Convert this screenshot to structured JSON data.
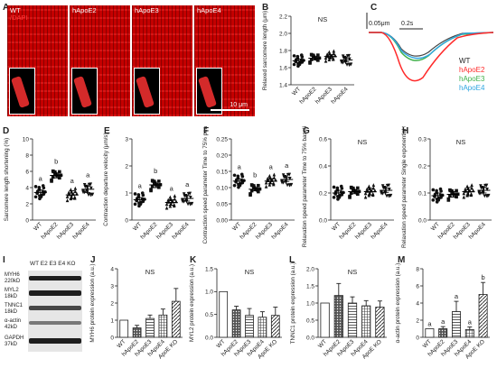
{
  "panels": {
    "A": "A",
    "B": "B",
    "C": "C",
    "D": "D",
    "E": "E",
    "F": "F",
    "G": "G",
    "H": "H",
    "I": "I",
    "J": "J",
    "K": "K",
    "L": "L",
    "M": "M"
  },
  "panel_a": {
    "images": [
      {
        "label": "WT",
        "sublabel": "/DAPI"
      },
      {
        "label": "hApoE2"
      },
      {
        "label": "hApoE3"
      },
      {
        "label": "hApoE4"
      }
    ],
    "scale": "10 μm"
  },
  "panel_c": {
    "scale_y": "0.05μm",
    "scale_x": "0.2s",
    "legend": [
      {
        "name": "WT",
        "color": "#222222"
      },
      {
        "name": "hApoE2",
        "color": "#ff2a2a"
      },
      {
        "name": "hApoE3",
        "color": "#3fb04a"
      },
      {
        "name": "hApoE4",
        "color": "#2fa6e0"
      }
    ]
  },
  "groups4": [
    "WT",
    "hApoE2",
    "hApoE3",
    "hApoE4"
  ],
  "groups5": [
    "WT",
    "hApoE2",
    "hApoE3",
    "hApoE4",
    "ApoE KO"
  ],
  "chart_data": [
    {
      "panel": "B",
      "type": "scatter",
      "ylabel": "Relaxed sarcomere length (μm)",
      "ylim": [
        1.4,
        2.2
      ],
      "yticks": [
        "1.4",
        "1.6",
        "1.8",
        "2.0",
        "2.2"
      ],
      "categories": [
        "WT",
        "hApoE2",
        "hApoE3",
        "hApoE4"
      ],
      "means": [
        1.68,
        1.71,
        1.73,
        1.69
      ],
      "sem": [
        0.02,
        0.02,
        0.02,
        0.02
      ],
      "stat": "NS",
      "letters": []
    },
    {
      "panel": "D",
      "type": "scatter",
      "ylabel": "Sarcomere length shortening (%)",
      "ylim": [
        0,
        10
      ],
      "yticks": [
        "0",
        "2",
        "4",
        "6",
        "8",
        "10"
      ],
      "categories": [
        "WT",
        "hApoE2",
        "hApoE3",
        "hApoE4"
      ],
      "means": [
        3.4,
        5.5,
        3.1,
        3.8
      ],
      "sem": [
        0.3,
        0.3,
        0.5,
        0.4
      ],
      "stat": "",
      "letters": [
        "a",
        "b",
        "a",
        "a"
      ]
    },
    {
      "panel": "E",
      "type": "scatter",
      "ylabel": "Contraction departure velocity (μm/s)",
      "ylim": [
        0,
        3
      ],
      "yticks": [
        "0",
        "1",
        "2",
        "3"
      ],
      "categories": [
        "WT",
        "hApoE2",
        "hApoE3",
        "hApoE4"
      ],
      "means": [
        0.75,
        1.3,
        0.65,
        0.8
      ],
      "sem": [
        0.08,
        0.1,
        0.1,
        0.1
      ],
      "stat": "",
      "letters": [
        "a",
        "b",
        "a",
        "a"
      ]
    },
    {
      "panel": "F",
      "type": "scatter",
      "ylabel": "Contraction speed parameter Time to 75% peak (s)",
      "ylim": [
        0,
        0.25
      ],
      "yticks": [
        "0.00",
        "0.05",
        "0.10",
        "0.15",
        "0.20",
        "0.25"
      ],
      "categories": [
        "WT",
        "hApoE2",
        "hApoE3",
        "hApoE4"
      ],
      "means": [
        0.12,
        0.095,
        0.12,
        0.125
      ],
      "sem": [
        0.007,
        0.005,
        0.008,
        0.006
      ],
      "stat": "",
      "letters": [
        "a",
        "b",
        "a",
        "a"
      ]
    },
    {
      "panel": "G",
      "type": "scatter",
      "ylabel": "Relaxation speed parameter Time to 75% baseline (s)",
      "ylim": [
        0,
        0.6
      ],
      "yticks": [
        "0.0",
        "0.2",
        "0.4",
        "0.6"
      ],
      "categories": [
        "WT",
        "hApoE2",
        "hApoE3",
        "hApoE4"
      ],
      "means": [
        0.2,
        0.21,
        0.21,
        0.22
      ],
      "sem": [
        0.02,
        0.015,
        0.025,
        0.015
      ],
      "stat": "NS",
      "letters": []
    },
    {
      "panel": "H",
      "type": "scatter",
      "ylabel": "Relaxation speed parameter Single exponential tau (s)",
      "ylim": [
        0,
        0.3
      ],
      "yticks": [
        "0.0",
        "0.1",
        "0.2",
        "0.3"
      ],
      "categories": [
        "WT",
        "hApoE2",
        "hApoE3",
        "hApoE4"
      ],
      "means": [
        0.09,
        0.095,
        0.105,
        0.11
      ],
      "sem": [
        0.01,
        0.01,
        0.015,
        0.01
      ],
      "stat": "NS",
      "letters": []
    },
    {
      "panel": "J",
      "type": "bar",
      "ylabel": "MYH6 protein expression (a.u.)",
      "ylim": [
        0,
        4
      ],
      "yticks": [
        "0",
        "1",
        "2",
        "3",
        "4"
      ],
      "categories": [
        "WT",
        "hApoE2",
        "hApoE3",
        "hApoE4",
        "ApoE KO"
      ],
      "values": [
        1.0,
        0.55,
        1.1,
        1.3,
        2.1
      ],
      "sem": [
        0,
        0.15,
        0.2,
        0.35,
        0.75
      ],
      "stat": "NS",
      "letters": []
    },
    {
      "panel": "K",
      "type": "bar",
      "ylabel": "MYL2 protein expression (a.u.)",
      "ylim": [
        0,
        1.5
      ],
      "yticks": [
        "0.0",
        "0.5",
        "1.0",
        "1.5"
      ],
      "categories": [
        "WT",
        "hApoE2",
        "hApoE3",
        "hApoE4",
        "ApoE KO"
      ],
      "values": [
        1.0,
        0.6,
        0.48,
        0.44,
        0.48
      ],
      "sem": [
        0,
        0.08,
        0.15,
        0.12,
        0.18
      ],
      "stat": "NS",
      "letters": []
    },
    {
      "panel": "L",
      "type": "bar",
      "ylabel": "TNNC1 protein expression (a.u.)",
      "ylim": [
        0,
        2
      ],
      "yticks": [
        "0.0",
        "0.5",
        "1.0",
        "1.5",
        "2.0"
      ],
      "categories": [
        "WT",
        "hApoE2",
        "hApoE3",
        "hApoE4",
        "ApoE KO"
      ],
      "values": [
        1.0,
        1.22,
        1.0,
        0.92,
        0.88
      ],
      "sem": [
        0,
        0.35,
        0.18,
        0.15,
        0.18
      ],
      "stat": "NS",
      "letters": []
    },
    {
      "panel": "M",
      "type": "bar",
      "ylabel": "α-actin protein expression (a.u.)",
      "ylim": [
        0,
        8
      ],
      "yticks": [
        "0",
        "2",
        "4",
        "6",
        "8"
      ],
      "categories": [
        "WT",
        "hApoE2",
        "hApoE3",
        "hApoE4",
        "ApoE KO"
      ],
      "values": [
        1.0,
        1.0,
        3.0,
        0.9,
        5.0
      ],
      "sem": [
        0,
        0.25,
        1.2,
        0.3,
        1.4
      ],
      "stat": "",
      "letters": [
        "a",
        "a",
        "a",
        "a",
        "b"
      ]
    }
  ],
  "panel_i": {
    "lanes": "WT E2 E3 E4 KO",
    "rows": [
      {
        "name": "MYH6",
        "size": "220kD"
      },
      {
        "name": "MYL2",
        "size": "18kD"
      },
      {
        "name": "TNNC1",
        "size": "18kD"
      },
      {
        "name": "α-actin",
        "size": "42kD"
      },
      {
        "name": "GAPDH",
        "size": "37kD"
      }
    ]
  }
}
